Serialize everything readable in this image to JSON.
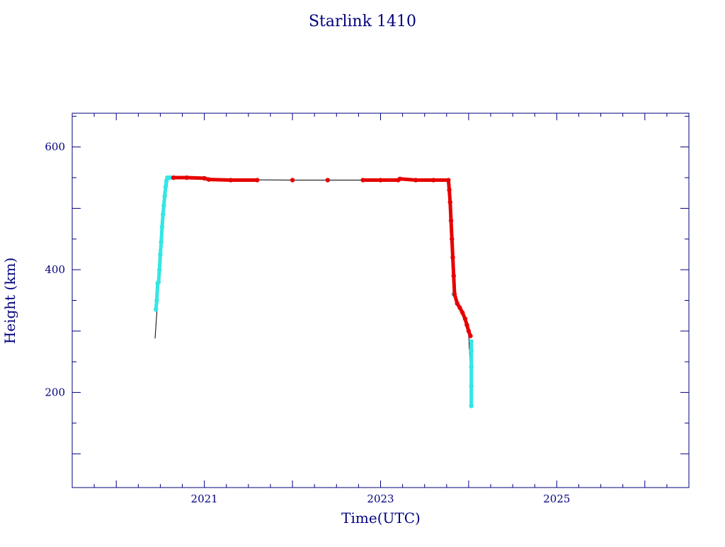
{
  "chart_data": {
    "type": "scatter",
    "title": "Starlink 1410",
    "xlabel": "Time(UTC)",
    "ylabel": "Height (km)",
    "xlim": [
      2019.5,
      2026.5
    ],
    "ylim": [
      45,
      655
    ],
    "x_ticks": [
      2021,
      2023,
      2025
    ],
    "y_ticks": [
      200,
      400,
      600
    ],
    "grid": false,
    "colors": {
      "axes": "#00007f",
      "text": "#00007f",
      "line": "#000000",
      "cyan": "#33e6e6",
      "red": "#e60000"
    },
    "series": [
      {
        "type": "line",
        "color": "line",
        "x": [
          2020.44,
          2020.46,
          2020.47,
          2020.49,
          2020.52,
          2020.54,
          2020.56,
          2020.59,
          2020.6,
          2020.62,
          2021.0,
          2021.05,
          2022.0,
          2023.0,
          2023.2,
          2023.3,
          2023.5,
          2023.77,
          2023.8,
          2023.83,
          2023.85,
          2023.87,
          2023.9,
          2023.95,
          2024.0,
          2024.02,
          2024.03
        ],
        "y": [
          288,
          330,
          380,
          380,
          440,
          480,
          520,
          548,
          550,
          550,
          549,
          547,
          546,
          546,
          547,
          546,
          546,
          546,
          500,
          420,
          355,
          345,
          335,
          320,
          295,
          240,
          180
        ]
      },
      {
        "type": "scatter",
        "color": "cyan",
        "x": [
          2020.45,
          2020.46,
          2020.47,
          2020.48,
          2020.49,
          2020.5,
          2020.51,
          2020.52,
          2020.53,
          2020.54,
          2020.55,
          2020.56,
          2020.57,
          2020.58,
          2020.6,
          2020.62,
          2023.83,
          2024.03,
          2024.03,
          2024.03,
          2024.03,
          2024.03
        ],
        "y": [
          335,
          350,
          378,
          380,
          400,
          425,
          445,
          470,
          490,
          505,
          520,
          535,
          545,
          550,
          550,
          550,
          360,
          283,
          268,
          242,
          210,
          178
        ]
      },
      {
        "type": "scatter",
        "color": "red",
        "x": [
          2020.65,
          2020.8,
          2021.0,
          2021.05,
          2021.3,
          2021.6,
          2022.0,
          2022.4,
          2022.8,
          2023.0,
          2023.2,
          2023.22,
          2023.4,
          2023.6,
          2023.77,
          2023.78,
          2023.79,
          2023.8,
          2023.81,
          2023.82,
          2023.83,
          2023.84,
          2023.87,
          2023.9,
          2023.93,
          2023.96,
          2023.98,
          2024.0,
          2024.02
        ],
        "y": [
          550,
          550,
          549,
          547,
          546,
          546,
          546,
          546,
          546,
          546,
          546,
          548,
          546,
          546,
          546,
          530,
          510,
          480,
          450,
          420,
          390,
          360,
          345,
          338,
          330,
          320,
          310,
          300,
          292
        ]
      }
    ]
  }
}
